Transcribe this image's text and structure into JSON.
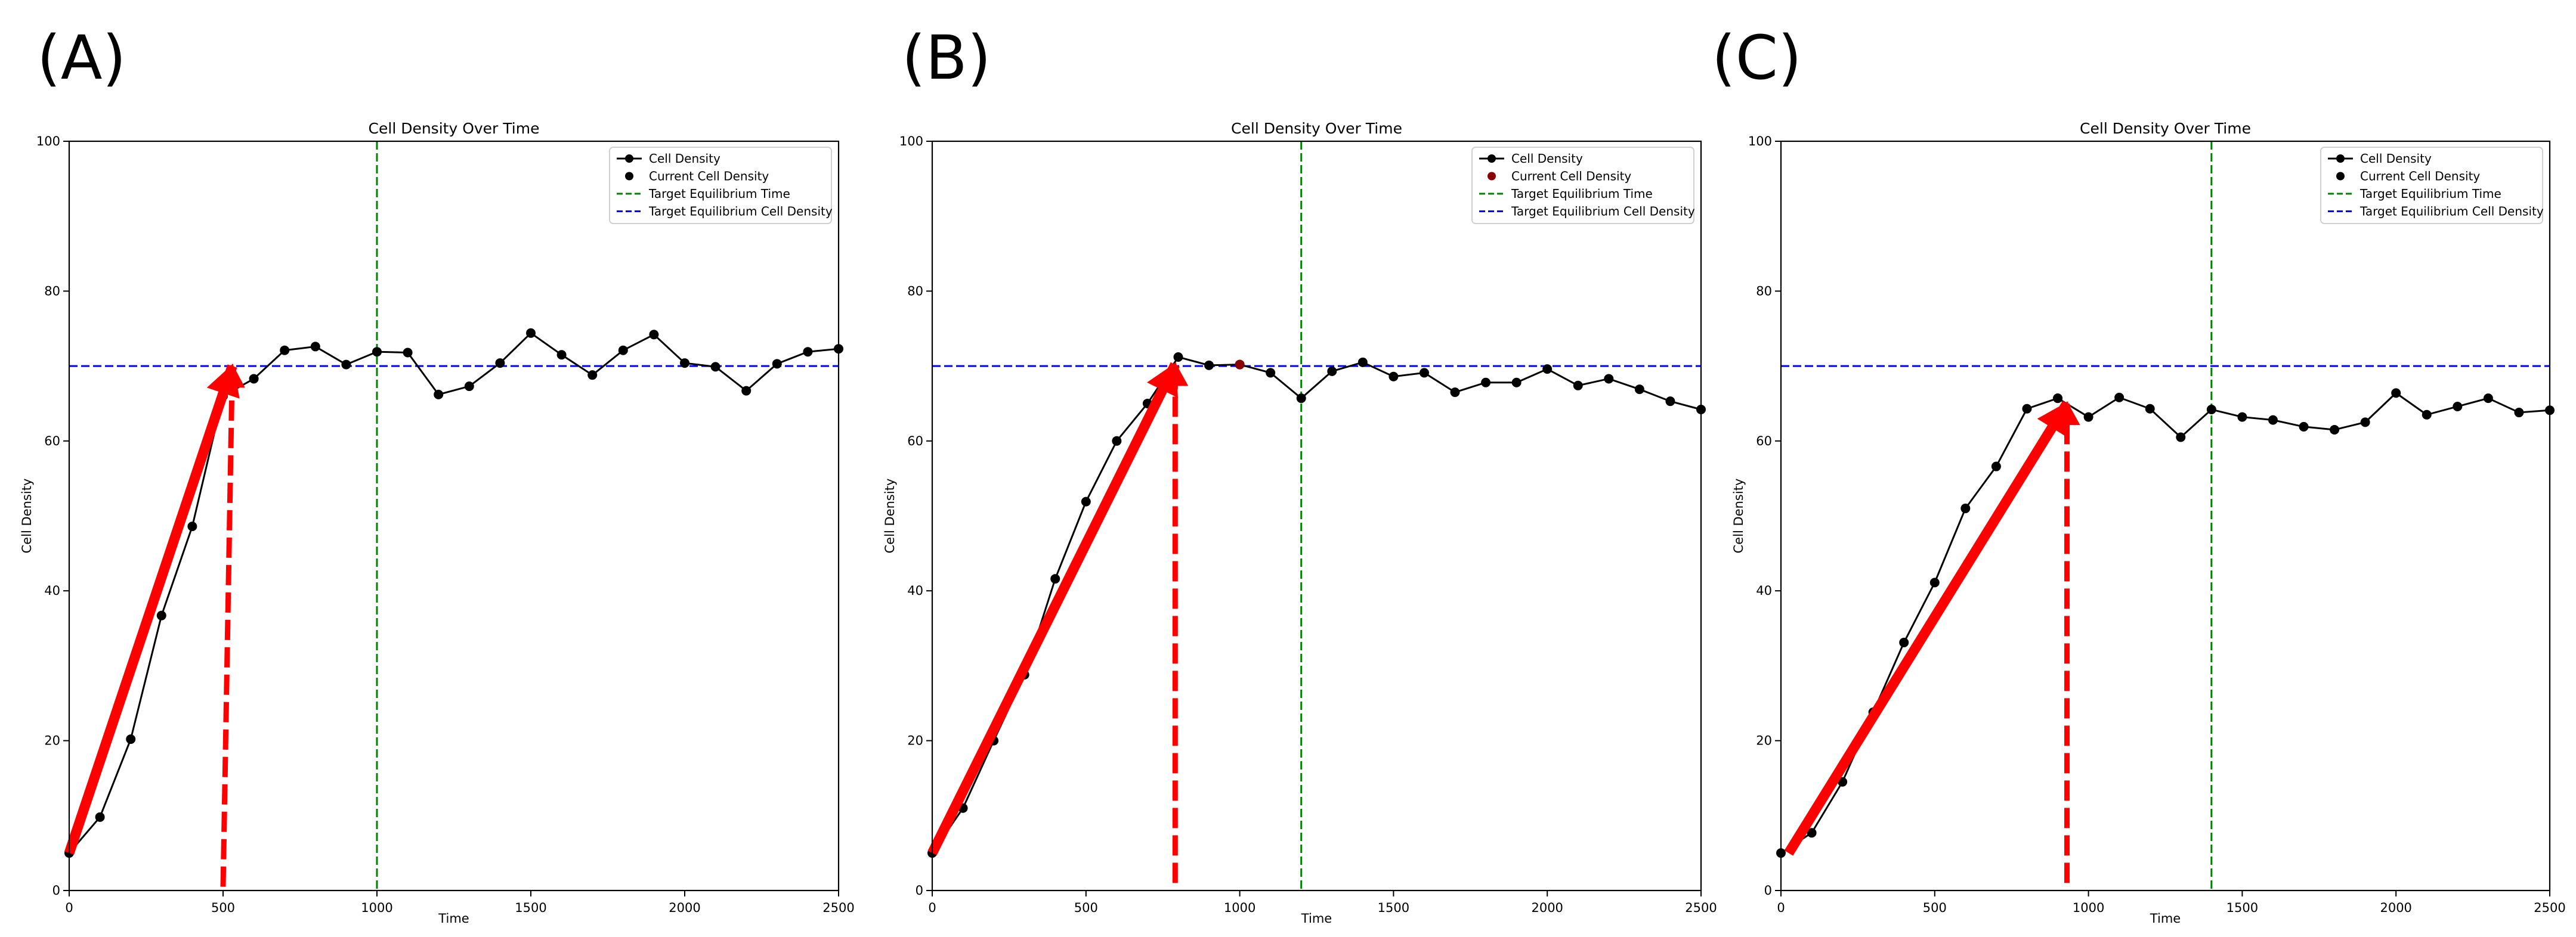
{
  "chart_data": [
    {
      "panel_label": "(A)",
      "type": "line",
      "title": "Cell Density Over Time",
      "xlabel": "Time",
      "ylabel": "Cell Density",
      "xlim": [
        0,
        2500
      ],
      "ylim": [
        0,
        100
      ],
      "xticks": [
        0,
        500,
        1000,
        1500,
        2000,
        2500
      ],
      "yticks": [
        0,
        20,
        40,
        60,
        80,
        100
      ],
      "legend_position": "top-right",
      "colors": {
        "series": "#000000",
        "target_time": "#008000",
        "target_density": "#0000ff",
        "annotation": "#ff0000"
      },
      "series": [
        {
          "name": "Cell Density",
          "x": [
            0,
            100,
            200,
            300,
            400,
            500,
            600,
            700,
            800,
            900,
            1000,
            1100,
            1200,
            1300,
            1400,
            1500,
            1600,
            1700,
            1800,
            1900,
            2000,
            2100,
            2200,
            2300,
            2400,
            2500
          ],
          "y": [
            5,
            9.8,
            20.2,
            36.7,
            48.6,
            66,
            68.3,
            72.1,
            72.6,
            70.2,
            71.9,
            71.8,
            66.2,
            67.3,
            70.4,
            74.4,
            71.5,
            68.8,
            72.1,
            74.2,
            70.4,
            69.9,
            66.7,
            70.3,
            71.9,
            72.3
          ]
        }
      ],
      "current_point": {
        "name": "Current Cell Density",
        "x": 500,
        "y": 66,
        "color": "#000000"
      },
      "target_equilibrium_time": {
        "name": "Target Equilibrium Time",
        "value": 1000
      },
      "target_equilibrium_density": {
        "name": "Target Equilibrium Cell Density",
        "value": 70
      },
      "annotations": {
        "arrow": {
          "from": [
            0,
            5
          ],
          "to": [
            530,
            70
          ]
        },
        "dashed_arrow": {
          "from": [
            500,
            0.5
          ],
          "to": [
            530,
            70
          ]
        }
      }
    },
    {
      "panel_label": "(B)",
      "type": "line",
      "title": "Cell Density Over Time",
      "xlabel": "Time",
      "ylabel": "Cell Density",
      "xlim": [
        0,
        2500
      ],
      "ylim": [
        0,
        100
      ],
      "xticks": [
        0,
        500,
        1000,
        1500,
        2000,
        2500
      ],
      "yticks": [
        0,
        20,
        40,
        60,
        80,
        100
      ],
      "legend_position": "top-right",
      "colors": {
        "series": "#000000",
        "target_time": "#008000",
        "target_density": "#0000ff",
        "annotation": "#ff0000"
      },
      "series": [
        {
          "name": "Cell Density",
          "x": [
            0,
            100,
            200,
            300,
            400,
            500,
            600,
            700,
            800,
            900,
            1000,
            1100,
            1200,
            1300,
            1400,
            1500,
            1600,
            1700,
            1800,
            1900,
            2000,
            2100,
            2200,
            2300,
            2400,
            2500
          ],
          "y": [
            5,
            11,
            20,
            28.8,
            41.6,
            51.9,
            60,
            65,
            71.2,
            70.1,
            70.2,
            69.1,
            65.7,
            69.3,
            70.5,
            68.6,
            69.1,
            66.5,
            67.8,
            67.8,
            69.6,
            67.4,
            68.3,
            66.9,
            65.3,
            64.2
          ]
        }
      ],
      "current_point": {
        "name": "Current Cell Density",
        "x": 1000,
        "y": 70.2,
        "color": "#8b0000"
      },
      "target_equilibrium_time": {
        "name": "Target Equilibrium Time",
        "value": 1200
      },
      "target_equilibrium_density": {
        "name": "Target Equilibrium Cell Density",
        "value": 70
      },
      "annotations": {
        "arrow": {
          "from": [
            0,
            5
          ],
          "to": [
            790,
            70.2
          ]
        },
        "dashed_arrow": {
          "from": [
            790,
            1
          ],
          "to": [
            790,
            70.2
          ]
        }
      }
    },
    {
      "panel_label": "(C)",
      "type": "line",
      "title": "Cell Density Over Time",
      "xlabel": "Time",
      "ylabel": "Cell Density",
      "xlim": [
        0,
        2500
      ],
      "ylim": [
        0,
        100
      ],
      "xticks": [
        0,
        500,
        1000,
        1500,
        2000,
        2500
      ],
      "yticks": [
        0,
        20,
        40,
        60,
        80,
        100
      ],
      "legend_position": "top-right",
      "colors": {
        "series": "#000000",
        "target_time": "#008000",
        "target_density": "#0000ff",
        "annotation": "#ff0000"
      },
      "series": [
        {
          "name": "Cell Density",
          "x": [
            0,
            100,
            200,
            300,
            400,
            500,
            600,
            700,
            800,
            900,
            1000,
            1100,
            1200,
            1300,
            1400,
            1500,
            1600,
            1700,
            1800,
            1900,
            2000,
            2100,
            2200,
            2300,
            2400,
            2500
          ],
          "y": [
            5,
            7.7,
            14.5,
            23.8,
            33.1,
            41.1,
            51,
            56.6,
            64.3,
            65.7,
            63.2,
            65.8,
            64.3,
            60.5,
            64.2,
            63.2,
            62.8,
            61.9,
            61.5,
            62.5,
            66.4,
            63.5,
            64.6,
            65.7,
            63.8,
            64.1
          ]
        }
      ],
      "current_point": {
        "name": "Current Cell Density",
        "x": 900,
        "y": 65.7,
        "color": "#000000"
      },
      "target_equilibrium_time": {
        "name": "Target Equilibrium Time",
        "value": 1400
      },
      "target_equilibrium_density": {
        "name": "Target Equilibrium Cell Density",
        "value": 70
      },
      "annotations": {
        "arrow": {
          "from": [
            25,
            5
          ],
          "to": [
            930,
            65
          ]
        },
        "dashed_arrow": {
          "from": [
            930,
            1
          ],
          "to": [
            930,
            65
          ]
        }
      }
    }
  ]
}
